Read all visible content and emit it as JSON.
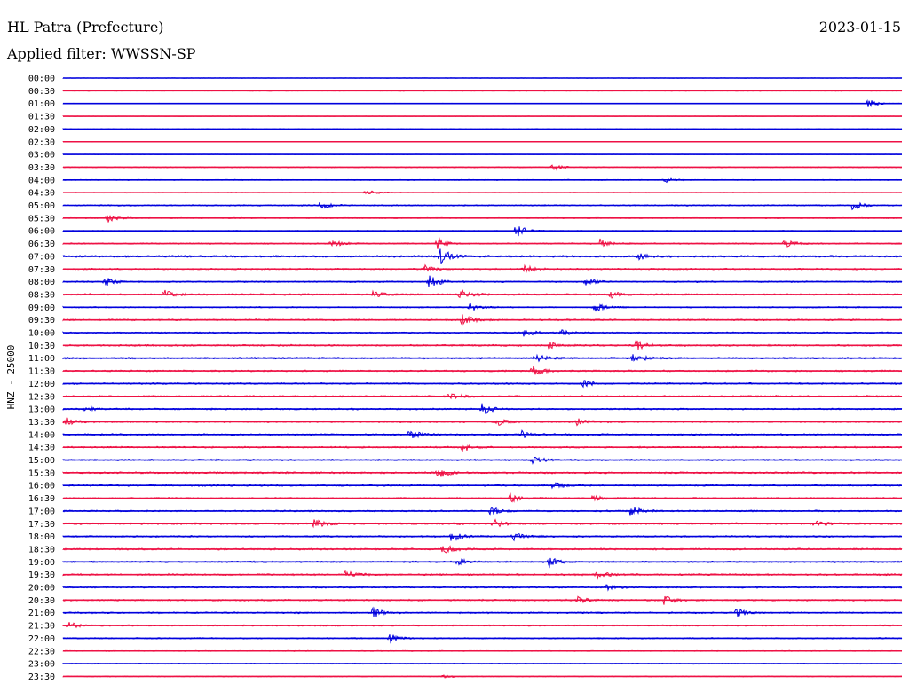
{
  "header": {
    "station": "HL Patra (Prefecture)",
    "date": "2023-01-15",
    "filter_label": "Applied filter: WWSSN-SP"
  },
  "colors": {
    "trace_a": "#0000dd",
    "trace_b": "#ee1144",
    "text": "#000000",
    "background": "#ffffff"
  },
  "chart_data": {
    "type": "line",
    "title": "HL Patra (Prefecture)",
    "subtitle": "Applied filter: WWSSN-SP",
    "date": "2023-01-15",
    "ylabel": "HNZ - 25000",
    "row_labels": [
      "00:00",
      "00:30",
      "01:00",
      "01:30",
      "02:00",
      "02:30",
      "03:00",
      "03:30",
      "04:00",
      "04:30",
      "05:00",
      "05:30",
      "06:00",
      "06:30",
      "07:00",
      "07:30",
      "08:00",
      "08:30",
      "09:00",
      "09:30",
      "10:00",
      "10:30",
      "11:00",
      "11:30",
      "12:00",
      "12:30",
      "13:00",
      "13:30",
      "14:00",
      "14:30",
      "15:00",
      "15:30",
      "16:00",
      "16:30",
      "17:00",
      "17:30",
      "18:00",
      "18:30",
      "19:00",
      "19:30",
      "20:00",
      "20:30",
      "21:00",
      "21:30",
      "22:00",
      "22:30",
      "23:00",
      "23:30"
    ],
    "row_duration_minutes": 30,
    "series_colors": [
      "#0000dd",
      "#ee1144"
    ],
    "noise_level": [
      0.3,
      0.5,
      0.3,
      0.3,
      0.5,
      0.3,
      0.3,
      0.6,
      0.6,
      0.5,
      0.8,
      0.6,
      0.6,
      0.8,
      1.2,
      0.9,
      0.9,
      1.1,
      0.8,
      1.0,
      0.9,
      1.1,
      1.1,
      1.0,
      1.0,
      1.0,
      1.0,
      1.1,
      1.0,
      1.0,
      1.0,
      1.1,
      1.0,
      1.0,
      1.0,
      1.1,
      1.0,
      1.1,
      1.0,
      1.1,
      1.0,
      1.0,
      1.0,
      0.9,
      0.8,
      0.6,
      0.6,
      0.5
    ],
    "events": [
      {
        "row": 2,
        "minute": 28.8,
        "amp": 5
      },
      {
        "row": 7,
        "minute": 17.5,
        "amp": 4
      },
      {
        "row": 8,
        "minute": 21.5,
        "amp": 3
      },
      {
        "row": 9,
        "minute": 10.8,
        "amp": 4
      },
      {
        "row": 10,
        "minute": 9.2,
        "amp": 5
      },
      {
        "row": 10,
        "minute": 28.2,
        "amp": 6
      },
      {
        "row": 11,
        "minute": 1.6,
        "amp": 5
      },
      {
        "row": 12,
        "minute": 16.2,
        "amp": 9
      },
      {
        "row": 13,
        "minute": 9.6,
        "amp": 5
      },
      {
        "row": 13,
        "minute": 13.4,
        "amp": 6
      },
      {
        "row": 13,
        "minute": 19.2,
        "amp": 5
      },
      {
        "row": 13,
        "minute": 25.8,
        "amp": 6
      },
      {
        "row": 14,
        "minute": 13.5,
        "amp": 9
      },
      {
        "row": 14,
        "minute": 20.6,
        "amp": 4
      },
      {
        "row": 15,
        "minute": 12.9,
        "amp": 5
      },
      {
        "row": 15,
        "minute": 16.5,
        "amp": 4
      },
      {
        "row": 16,
        "minute": 1.5,
        "amp": 5
      },
      {
        "row": 16,
        "minute": 13.1,
        "amp": 8
      },
      {
        "row": 16,
        "minute": 18.7,
        "amp": 4
      },
      {
        "row": 17,
        "minute": 3.6,
        "amp": 5
      },
      {
        "row": 17,
        "minute": 11.1,
        "amp": 4
      },
      {
        "row": 17,
        "minute": 14.2,
        "amp": 6
      },
      {
        "row": 17,
        "minute": 19.6,
        "amp": 5
      },
      {
        "row": 18,
        "minute": 14.5,
        "amp": 6
      },
      {
        "row": 18,
        "minute": 19.0,
        "amp": 7
      },
      {
        "row": 19,
        "minute": 14.3,
        "amp": 8
      },
      {
        "row": 20,
        "minute": 16.5,
        "amp": 5
      },
      {
        "row": 20,
        "minute": 17.8,
        "amp": 4
      },
      {
        "row": 21,
        "minute": 17.3,
        "amp": 5
      },
      {
        "row": 21,
        "minute": 20.5,
        "amp": 6
      },
      {
        "row": 22,
        "minute": 16.9,
        "amp": 5
      },
      {
        "row": 22,
        "minute": 20.4,
        "amp": 6
      },
      {
        "row": 23,
        "minute": 16.8,
        "amp": 6
      },
      {
        "row": 24,
        "minute": 18.6,
        "amp": 4
      },
      {
        "row": 25,
        "minute": 13.8,
        "amp": 5
      },
      {
        "row": 26,
        "minute": 15.0,
        "amp": 7
      },
      {
        "row": 26,
        "minute": 0.8,
        "amp": 3
      },
      {
        "row": 27,
        "minute": 0.1,
        "amp": 5
      },
      {
        "row": 27,
        "minute": 15.5,
        "amp": 5
      },
      {
        "row": 27,
        "minute": 18.4,
        "amp": 4
      },
      {
        "row": 28,
        "minute": 12.4,
        "amp": 6
      },
      {
        "row": 28,
        "minute": 16.4,
        "amp": 4
      },
      {
        "row": 29,
        "minute": 14.3,
        "amp": 5
      },
      {
        "row": 30,
        "minute": 16.8,
        "amp": 4
      },
      {
        "row": 31,
        "minute": 13.4,
        "amp": 7
      },
      {
        "row": 32,
        "minute": 17.5,
        "amp": 5
      },
      {
        "row": 33,
        "minute": 16.0,
        "amp": 5
      },
      {
        "row": 33,
        "minute": 18.9,
        "amp": 4
      },
      {
        "row": 34,
        "minute": 15.3,
        "amp": 5
      },
      {
        "row": 34,
        "minute": 20.3,
        "amp": 6
      },
      {
        "row": 35,
        "minute": 9.0,
        "amp": 5
      },
      {
        "row": 35,
        "minute": 15.4,
        "amp": 5
      },
      {
        "row": 35,
        "minute": 26.9,
        "amp": 4
      },
      {
        "row": 36,
        "minute": 13.9,
        "amp": 7
      },
      {
        "row": 36,
        "minute": 16.1,
        "amp": 5
      },
      {
        "row": 37,
        "minute": 13.6,
        "amp": 6
      },
      {
        "row": 38,
        "minute": 17.4,
        "amp": 5
      },
      {
        "row": 38,
        "minute": 14.1,
        "amp": 4
      },
      {
        "row": 39,
        "minute": 10.1,
        "amp": 4
      },
      {
        "row": 39,
        "minute": 19.1,
        "amp": 5
      },
      {
        "row": 40,
        "minute": 19.4,
        "amp": 4
      },
      {
        "row": 41,
        "minute": 21.5,
        "amp": 5
      },
      {
        "row": 41,
        "minute": 18.4,
        "amp": 4
      },
      {
        "row": 42,
        "minute": 11.1,
        "amp": 6
      },
      {
        "row": 42,
        "minute": 24.1,
        "amp": 5
      },
      {
        "row": 43,
        "minute": 0.2,
        "amp": 4
      },
      {
        "row": 44,
        "minute": 11.7,
        "amp": 5
      },
      {
        "row": 47,
        "minute": 13.6,
        "amp": 2
      }
    ]
  }
}
